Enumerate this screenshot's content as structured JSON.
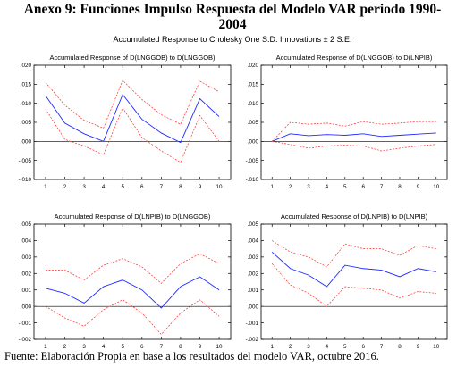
{
  "page": {
    "title_line1": "Anexo 9: Funciones Impulso Respuesta del Modelo VAR periodo 1990-",
    "title_line2": "2004",
    "subtitle": "Accumulated Response to Cholesky One S.D. Innovations ± 2 S.E.",
    "footer": "Fuente: Elaboración Propia en base a los resultados del modelo VAR, octubre 2016."
  },
  "colors": {
    "response": "#1f2bff",
    "band": "#ff2a2a",
    "axis": "#000000"
  },
  "chart_data": [
    {
      "type": "line",
      "title": "Accumulated Response of D(LNGGOB) to D(LNGGOB)",
      "x": [
        1,
        2,
        3,
        4,
        5,
        6,
        7,
        8,
        9,
        10
      ],
      "ylim": [
        -0.01,
        0.02
      ],
      "yticks": [
        ".020",
        ".015",
        ".010",
        ".005",
        ".000",
        "-.005",
        "-.010"
      ],
      "yticks_values": [
        0.02,
        0.015,
        0.01,
        0.005,
        0.0,
        -0.005,
        -0.01
      ],
      "series": [
        {
          "role": "response",
          "values": [
            0.012,
            0.0048,
            0.002,
            0.0,
            0.0123,
            0.0058,
            0.0022,
            -0.0003,
            0.0112,
            0.0065
          ]
        },
        {
          "role": "upper",
          "values": [
            0.0155,
            0.0095,
            0.0055,
            0.0035,
            0.016,
            0.011,
            0.007,
            0.0045,
            0.0158,
            0.013
          ]
        },
        {
          "role": "lower",
          "values": [
            0.0085,
            0.0005,
            -0.0012,
            -0.0035,
            0.0088,
            0.001,
            -0.0025,
            -0.0055,
            0.0068,
            0.0
          ]
        }
      ]
    },
    {
      "type": "line",
      "title": "Accumulated Response of D(LNGGOB) to D(LNPIB)",
      "x": [
        1,
        2,
        3,
        4,
        5,
        6,
        7,
        8,
        9,
        10
      ],
      "ylim": [
        -0.01,
        0.02
      ],
      "yticks": [
        ".020",
        ".015",
        ".010",
        ".005",
        ".000",
        "-.005",
        "-.010"
      ],
      "yticks_values": [
        0.02,
        0.015,
        0.01,
        0.005,
        0.0,
        -0.005,
        -0.01
      ],
      "series": [
        {
          "role": "response",
          "values": [
            0.0,
            0.002,
            0.0015,
            0.0018,
            0.0016,
            0.002,
            0.0013,
            0.0016,
            0.0019,
            0.0022
          ]
        },
        {
          "role": "upper",
          "values": [
            0.0,
            0.005,
            0.0045,
            0.0048,
            0.004,
            0.0052,
            0.0045,
            0.0048,
            0.0052,
            0.0052
          ]
        },
        {
          "role": "lower",
          "values": [
            0.0,
            -0.0008,
            -0.0018,
            -0.0012,
            -0.001,
            -0.0012,
            -0.0025,
            -0.0018,
            -0.0012,
            -0.0008
          ]
        }
      ]
    },
    {
      "type": "line",
      "title": "Accumulated Response of D(LNPIB) to D(LNGGOB)",
      "x": [
        1,
        2,
        3,
        4,
        5,
        6,
        7,
        8,
        9,
        10
      ],
      "ylim": [
        -0.002,
        0.005
      ],
      "yticks": [
        ".005",
        ".004",
        ".003",
        ".002",
        ".001",
        ".000",
        "-.001",
        "-.002"
      ],
      "yticks_values": [
        0.005,
        0.004,
        0.003,
        0.002,
        0.001,
        0.0,
        -0.001,
        -0.002
      ],
      "series": [
        {
          "role": "response",
          "values": [
            0.0011,
            0.0008,
            0.0002,
            0.0012,
            0.0016,
            0.001,
            -0.0001,
            0.0012,
            0.0018,
            0.001
          ]
        },
        {
          "role": "upper",
          "values": [
            0.0022,
            0.0022,
            0.0016,
            0.0025,
            0.0029,
            0.0024,
            0.0014,
            0.0026,
            0.0032,
            0.0026
          ]
        },
        {
          "role": "lower",
          "values": [
            0.0,
            -0.0007,
            -0.0012,
            -0.0002,
            0.0004,
            -0.0004,
            -0.0017,
            -0.0004,
            0.0004,
            -0.0006
          ]
        }
      ]
    },
    {
      "type": "line",
      "title": "Accumulated Response of D(LNPIB) to D(LNPIB)",
      "x": [
        1,
        2,
        3,
        4,
        5,
        6,
        7,
        8,
        9,
        10
      ],
      "ylim": [
        -0.002,
        0.005
      ],
      "yticks": [
        ".005",
        ".004",
        ".003",
        ".002",
        ".001",
        ".000",
        "-.001",
        "-.002"
      ],
      "yticks_values": [
        0.005,
        0.004,
        0.003,
        0.002,
        0.001,
        0.0,
        -0.001,
        -0.002
      ],
      "series": [
        {
          "role": "response",
          "values": [
            0.0033,
            0.0023,
            0.0019,
            0.0012,
            0.0025,
            0.0023,
            0.0022,
            0.0018,
            0.0023,
            0.0021
          ]
        },
        {
          "role": "upper",
          "values": [
            0.004,
            0.0033,
            0.003,
            0.0024,
            0.0038,
            0.0035,
            0.0035,
            0.0031,
            0.0037,
            0.0035
          ]
        },
        {
          "role": "lower",
          "values": [
            0.0026,
            0.0013,
            0.0008,
            0.0,
            0.0012,
            0.0011,
            0.001,
            0.0005,
            0.0009,
            0.0008
          ]
        }
      ]
    }
  ]
}
